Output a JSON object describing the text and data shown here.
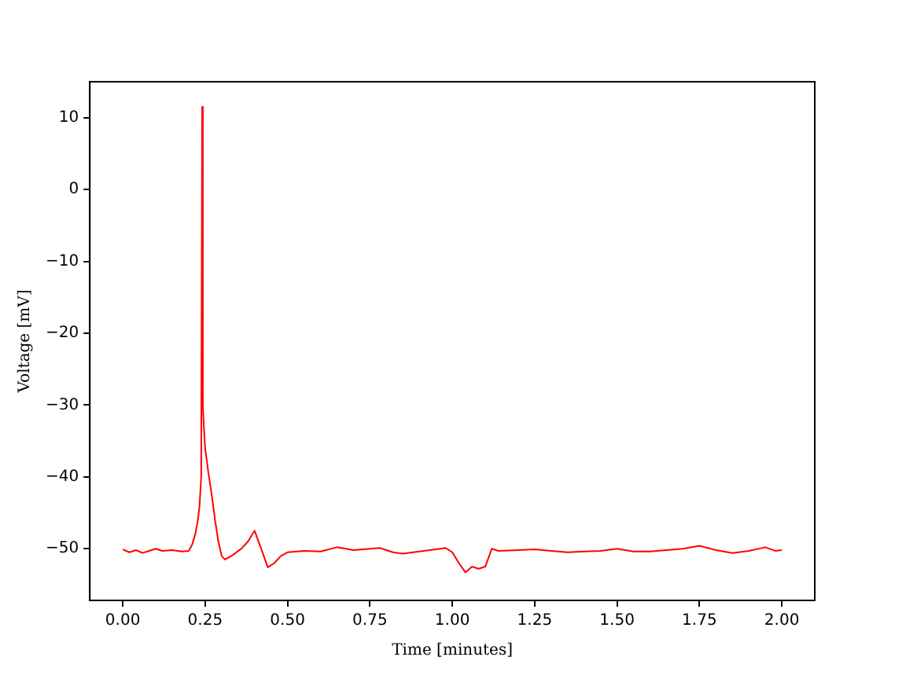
{
  "chart_data": {
    "type": "line",
    "xlabel": "Time [minutes]",
    "ylabel": "Voltage [mV]",
    "x": [
      0,
      0.02,
      0.04,
      0.06,
      0.08,
      0.1,
      0.12,
      0.15,
      0.18,
      0.2,
      0.21,
      0.22,
      0.228,
      0.233,
      0.238,
      0.241,
      0.243,
      0.246,
      0.25,
      0.26,
      0.27,
      0.28,
      0.29,
      0.3,
      0.31,
      0.33,
      0.36,
      0.38,
      0.4,
      0.42,
      0.44,
      0.46,
      0.48,
      0.5,
      0.55,
      0.6,
      0.65,
      0.7,
      0.75,
      0.78,
      0.82,
      0.85,
      0.9,
      0.95,
      0.98,
      1.0,
      1.02,
      1.04,
      1.06,
      1.08,
      1.1,
      1.12,
      1.14,
      1.2,
      1.25,
      1.3,
      1.35,
      1.4,
      1.45,
      1.5,
      1.55,
      1.6,
      1.65,
      1.7,
      1.75,
      1.8,
      1.85,
      1.9,
      1.95,
      1.98,
      2.0
    ],
    "series": [
      {
        "color": "#ff0000",
        "values": [
          -50.1,
          -50.5,
          -50.2,
          -50.6,
          -50.3,
          -50.0,
          -50.3,
          -50.2,
          -50.4,
          -50.3,
          -49.5,
          -48.0,
          -46.0,
          -44.0,
          -40.0,
          11.5,
          -30.0,
          -33.0,
          -36.0,
          -39.5,
          -42.5,
          -46.0,
          -49.0,
          -51.0,
          -51.5,
          -51.0,
          -50.0,
          -49.0,
          -47.5,
          -50.0,
          -52.6,
          -52.0,
          -51.0,
          -50.5,
          -50.3,
          -50.4,
          -49.8,
          -50.2,
          -50.0,
          -49.9,
          -50.5,
          -50.7,
          -50.4,
          -50.1,
          -49.9,
          -50.5,
          -52.0,
          -53.3,
          -52.5,
          -52.8,
          -52.5,
          -50.0,
          -50.3,
          -50.2,
          -50.1,
          -50.3,
          -50.5,
          -50.4,
          -50.3,
          -50.0,
          -50.4,
          -50.4,
          -50.2,
          -50.0,
          -49.6,
          -50.2,
          -50.6,
          -50.3,
          -49.8,
          -50.3,
          -50.2
        ]
      }
    ],
    "xlim": [
      -0.1,
      2.1
    ],
    "ylim": [
      -57.2,
      15
    ],
    "xticks": [
      {
        "value": 0,
        "label": "0.00"
      },
      {
        "value": 0.25,
        "label": "0.25"
      },
      {
        "value": 0.5,
        "label": "0.50"
      },
      {
        "value": 0.75,
        "label": "0.75"
      },
      {
        "value": 1,
        "label": "1.00"
      },
      {
        "value": 1.25,
        "label": "1.25"
      },
      {
        "value": 1.5,
        "label": "1.50"
      },
      {
        "value": 1.75,
        "label": "1.75"
      },
      {
        "value": 2,
        "label": "2.00"
      }
    ],
    "yticks": [
      {
        "value": -50,
        "label": "−50"
      },
      {
        "value": -40,
        "label": "−40"
      },
      {
        "value": -30,
        "label": "−30"
      },
      {
        "value": -20,
        "label": "−20"
      },
      {
        "value": -10,
        "label": "−10"
      },
      0,
      10
    ],
    "grid": false,
    "legend": false,
    "marker": "none",
    "line_style": "solid"
  }
}
